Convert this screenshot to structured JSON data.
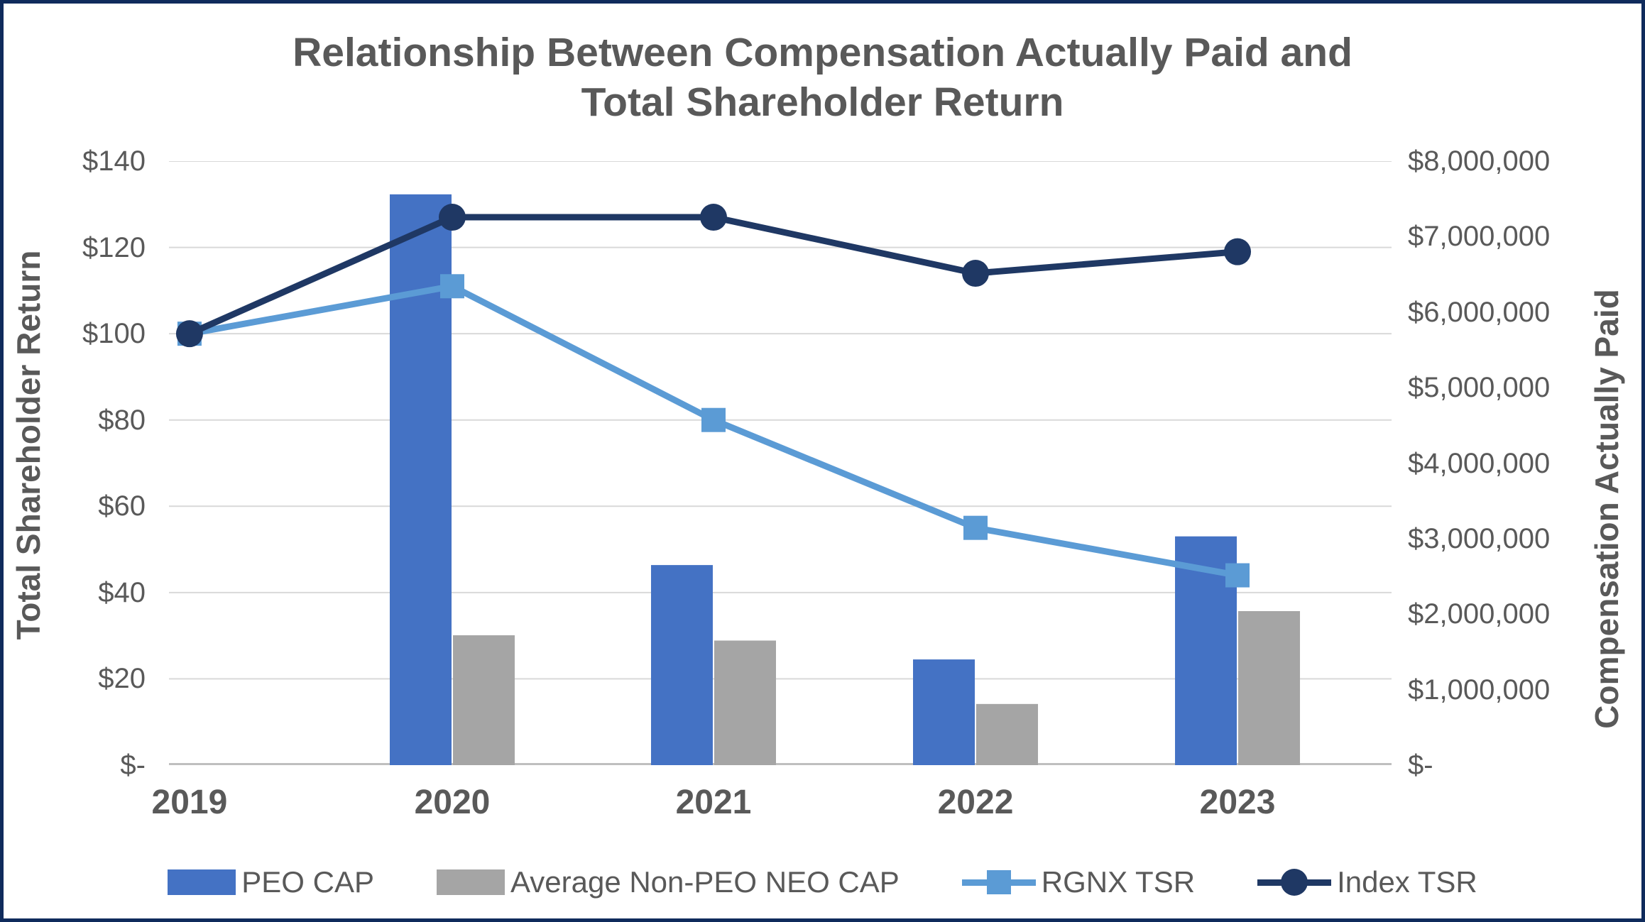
{
  "title": {
    "line1": "Relationship Between Compensation Actually Paid and",
    "line2": "Total Shareholder Return"
  },
  "left_axis": {
    "title": "Total Shareholder Return",
    "tick_labels": [
      "$140",
      "$120",
      "$100",
      "$80",
      "$60",
      "$40",
      "$20",
      "$-"
    ]
  },
  "right_axis": {
    "title": "Compensation Actually Paid",
    "tick_labels": [
      "$8,000,000",
      "$7,000,000",
      "$6,000,000",
      "$5,000,000",
      "$4,000,000",
      "$3,000,000",
      "$2,000,000",
      "$1,000,000",
      "$-"
    ]
  },
  "legend": {
    "items": [
      {
        "label": "PEO CAP",
        "type": "bar",
        "color": "#4472C4"
      },
      {
        "label": "Average Non-PEO NEO CAP",
        "type": "bar",
        "color": "#A5A5A5"
      },
      {
        "label": "RGNX TSR",
        "type": "line-square",
        "color": "#5B9BD5"
      },
      {
        "label": "Index TSR",
        "type": "line-circle",
        "color": "#1F3864"
      }
    ]
  },
  "colors": {
    "peo_cap_bar": "#4472C4",
    "non_peo_cap_bar": "#A5A5A5",
    "rgnx_tsr_line": "#5B9BD5",
    "index_tsr_line": "#1F3864",
    "gridline": "#D9D9D9",
    "baseline": "#BFBFBF",
    "text": "#595959",
    "frame_border": "#0F2B5C"
  },
  "chart_data": {
    "type": "combo",
    "title": "Relationship Between Compensation Actually Paid and Total Shareholder Return",
    "categories": [
      "2019",
      "2020",
      "2021",
      "2022",
      "2023"
    ],
    "series": [
      {
        "name": "PEO CAP",
        "type": "bar",
        "axis": "right",
        "color": "#4472C4",
        "values": [
          null,
          7560000,
          2650000,
          1400000,
          3030000
        ]
      },
      {
        "name": "Average Non-PEO NEO CAP",
        "type": "bar",
        "axis": "right",
        "color": "#A5A5A5",
        "values": [
          null,
          1720000,
          1650000,
          810000,
          2040000
        ]
      },
      {
        "name": "RGNX TSR",
        "type": "line",
        "marker": "square",
        "axis": "left",
        "color": "#5B9BD5",
        "values": [
          100,
          111,
          80,
          55,
          44
        ]
      },
      {
        "name": "Index TSR",
        "type": "line",
        "marker": "circle",
        "axis": "left",
        "color": "#1F3864",
        "values": [
          100,
          127,
          127,
          114,
          119
        ]
      }
    ],
    "left_axis": {
      "label": "Total Shareholder Return",
      "range": [
        0,
        140
      ],
      "step": 20
    },
    "right_axis": {
      "label": "Compensation Actually Paid",
      "range": [
        0,
        8000000
      ],
      "step": 1000000
    },
    "grid": true,
    "legend_position": "bottom"
  }
}
